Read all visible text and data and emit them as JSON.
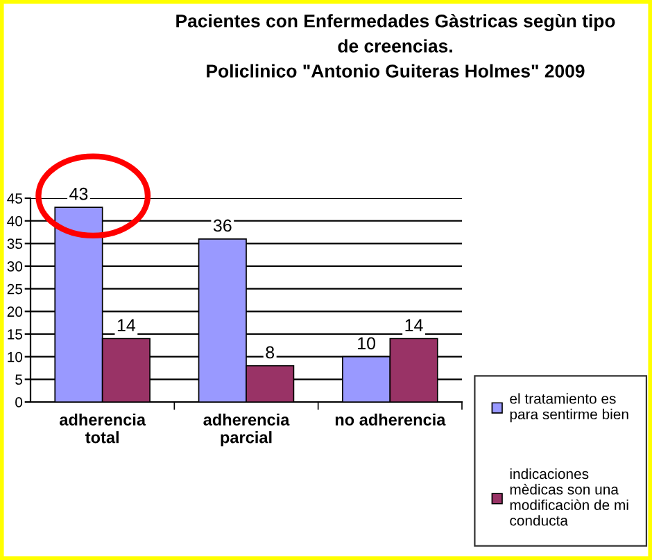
{
  "chart_data": {
    "type": "bar",
    "title": "Pacientes con Enfermedades Gàstricas segùn tipo de creencias.\nPoliclinico \"Antonio Guiteras Holmes\" 2009",
    "categories": [
      "adherencia total",
      "adherencia parcial",
      "no adherencia"
    ],
    "series": [
      {
        "name": "el tratamiento es para sentirme bien",
        "color": "#9999ff",
        "values": [
          43,
          36,
          10
        ]
      },
      {
        "name": "indicaciones mèdicas son una modificaciòn de mi conducta",
        "color": "#993366",
        "values": [
          14,
          8,
          14
        ]
      }
    ],
    "ylim": [
      0,
      45
    ],
    "yticks": [
      0,
      5,
      10,
      15,
      20,
      25,
      30,
      35,
      40,
      45
    ],
    "grid": "y",
    "legend": "right",
    "data_labels": true
  }
}
